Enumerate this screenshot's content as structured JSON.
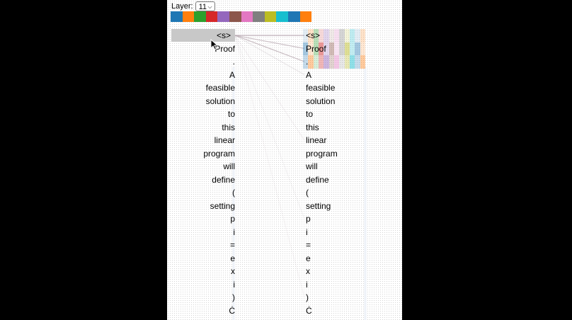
{
  "controls": {
    "layer_label": "Layer:",
    "layer_value": "11"
  },
  "palette": [
    "#1f77b4",
    "#ff7f0e",
    "#2ca02c",
    "#d62728",
    "#9467bd",
    "#8c564b",
    "#e377c2",
    "#7f7f7f",
    "#bcbd22",
    "#17becf",
    "#1f77b4",
    "#ff7f0e"
  ],
  "tokens": [
    "<s>",
    "Proof",
    ".",
    "A",
    "feasible",
    "solution",
    "to",
    "this",
    "linear",
    "program",
    "will",
    "define",
    "(",
    "setting",
    "p",
    "i",
    "=",
    "e",
    "x",
    "i",
    ")",
    "Ċ"
  ],
  "selected_token_index": 0,
  "colors": {
    "selected_bg": "#c8c8c8",
    "link": "#b9aab2"
  }
}
